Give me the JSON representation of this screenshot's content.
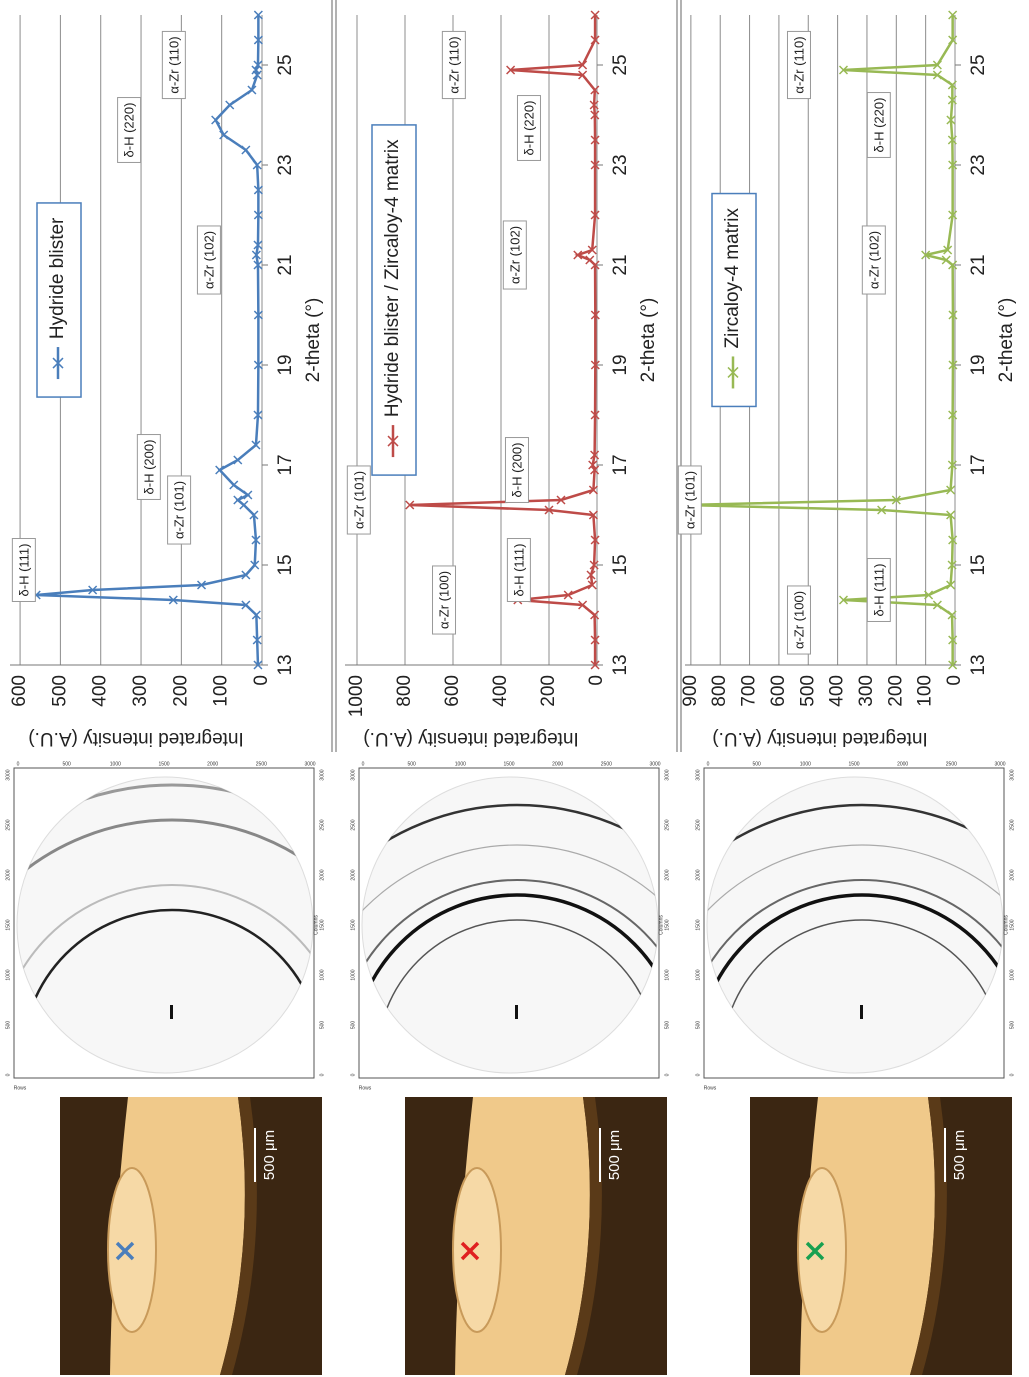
{
  "chart_data": [
    {
      "type": "line",
      "xlabel": "2-theta (°)",
      "ylabel": "Integrated intensity (A.U.)",
      "x": [
        13,
        13.5,
        14,
        14.2,
        14.3,
        14.4,
        14.5,
        14.6,
        14.8,
        15,
        15.5,
        16,
        16.2,
        16.3,
        16.4,
        16.6,
        16.9,
        17.1,
        17.4,
        18,
        19,
        20,
        21,
        21.2,
        21.4,
        22,
        22.5,
        23,
        23.3,
        23.6,
        23.9,
        24.2,
        24.5,
        24.8,
        24.9,
        25,
        25.5,
        26
      ],
      "series": [
        {
          "name": "Hydride blister",
          "color": "#4a7ebb",
          "values": [
            10,
            12,
            14,
            40,
            220,
            560,
            420,
            150,
            40,
            18,
            15,
            20,
            45,
            60,
            35,
            70,
            105,
            60,
            15,
            10,
            9,
            9,
            10,
            14,
            10,
            9,
            9,
            12,
            40,
            95,
            115,
            80,
            25,
            12,
            15,
            10,
            9,
            9
          ]
        }
      ],
      "xlim": [
        13,
        26
      ],
      "ylim": [
        0,
        625
      ],
      "xticks": [
        13,
        15,
        17,
        19,
        21,
        23,
        25
      ],
      "yticks": [
        0,
        100,
        200,
        300,
        400,
        500,
        600
      ],
      "grid": true,
      "legend": "upper center",
      "annotations": [
        {
          "text": "δ-H (111)",
          "x": 14.9,
          "y": 588
        },
        {
          "text": "α-Zr (101)",
          "x": 16.1,
          "y": 203
        },
        {
          "text": "δ-H (200)",
          "x": 16.96,
          "y": 278
        },
        {
          "text": "α-Zr (102)",
          "x": 21.1,
          "y": 129
        },
        {
          "text": "δ-H (220)",
          "x": 23.7,
          "y": 327
        },
        {
          "text": "α-Zr (110)",
          "x": 25.0,
          "y": 216
        }
      ]
    },
    {
      "type": "line",
      "xlabel": "2-theta (°)",
      "ylabel": "Integrated intensity (A.U.)",
      "x": [
        13,
        13.5,
        14,
        14.2,
        14.3,
        14.4,
        14.6,
        14.8,
        15,
        15.5,
        16,
        16.1,
        16.2,
        16.3,
        16.5,
        16.9,
        17,
        17.2,
        18,
        19,
        20,
        21,
        21.1,
        21.2,
        21.3,
        22,
        23,
        23.5,
        24,
        24.2,
        24.5,
        24.8,
        24.9,
        25,
        25.5,
        26
      ],
      "series": [
        {
          "name": "Hydride blister / Zircaloy-4 matrix",
          "color": "#be4b48",
          "values": [
            8,
            8,
            10,
            60,
            330,
            120,
            20,
            25,
            12,
            8,
            15,
            200,
            780,
            150,
            15,
            10,
            18,
            10,
            8,
            7,
            7,
            8,
            30,
            80,
            20,
            8,
            8,
            8,
            9,
            12,
            9,
            60,
            360,
            60,
            8,
            8
          ]
        }
      ],
      "xlim": [
        13,
        26
      ],
      "ylim": [
        0,
        1050
      ],
      "xticks": [
        13,
        15,
        17,
        19,
        21,
        23,
        25
      ],
      "yticks": [
        0,
        200,
        400,
        600,
        800,
        1000
      ],
      "grid": true,
      "legend": "upper center",
      "annotations": [
        {
          "text": "α-Zr (100)",
          "x": 14.3,
          "y": 633
        },
        {
          "text": "δ-H (111)",
          "x": 14.9,
          "y": 321
        },
        {
          "text": "α-Zr (101)",
          "x": 16.3,
          "y": 988
        },
        {
          "text": "δ-H (200)",
          "x": 16.9,
          "y": 329
        },
        {
          "text": "α-Zr (102)",
          "x": 21.2,
          "y": 338
        },
        {
          "text": "δ-H (220)",
          "x": 23.74,
          "y": 279
        },
        {
          "text": "α-Zr (110)",
          "x": 25.0,
          "y": 592
        }
      ]
    },
    {
      "type": "line",
      "xlabel": "2-theta (°)",
      "ylabel": "Integrated intensity (A.U.)",
      "x": [
        13,
        13.5,
        14,
        14.2,
        14.3,
        14.4,
        14.6,
        15,
        15.5,
        16,
        16.1,
        16.2,
        16.3,
        16.5,
        17,
        18,
        19,
        20,
        21,
        21.1,
        21.2,
        21.3,
        22,
        23,
        23.5,
        23.9,
        24.3,
        24.6,
        24.8,
        24.9,
        25,
        25.5,
        26
      ],
      "series": [
        {
          "name": "Zircaloy-4 matrix",
          "color": "#98b954",
          "values": [
            8,
            8,
            10,
            60,
            380,
            90,
            15,
            10,
            8,
            15,
            250,
            920,
            200,
            15,
            9,
            8,
            7,
            7,
            8,
            30,
            100,
            25,
            8,
            8,
            9,
            14,
            9,
            9,
            60,
            380,
            60,
            8,
            8
          ]
        }
      ],
      "xlim": [
        13,
        26
      ],
      "ylim": [
        0,
        920
      ],
      "xticks": [
        13,
        15,
        17,
        19,
        21,
        23,
        25
      ],
      "yticks": [
        0,
        100,
        200,
        300,
        400,
        500,
        600,
        700,
        800,
        900
      ],
      "grid": true,
      "legend": "upper center",
      "annotations": [
        {
          "text": "α-Zr (100)",
          "x": 13.9,
          "y": 528
        },
        {
          "text": "δ-H (111)",
          "x": 14.5,
          "y": 256
        },
        {
          "text": "α-Zr (101)",
          "x": 16.3,
          "y": 900
        },
        {
          "text": "α-Zr (102)",
          "x": 21.1,
          "y": 273
        },
        {
          "text": "δ-H (220)",
          "x": 23.8,
          "y": 256
        },
        {
          "text": "α-Zr (110)",
          "x": 25.0,
          "y": 528
        }
      ]
    }
  ],
  "diffraction": {
    "ticks": [
      0,
      500,
      1000,
      1500,
      2000,
      2500,
      3000
    ],
    "xlabel": "Columns",
    "ylabel": "Rows"
  },
  "micrograph": {
    "scale_bar": "500 μm"
  }
}
